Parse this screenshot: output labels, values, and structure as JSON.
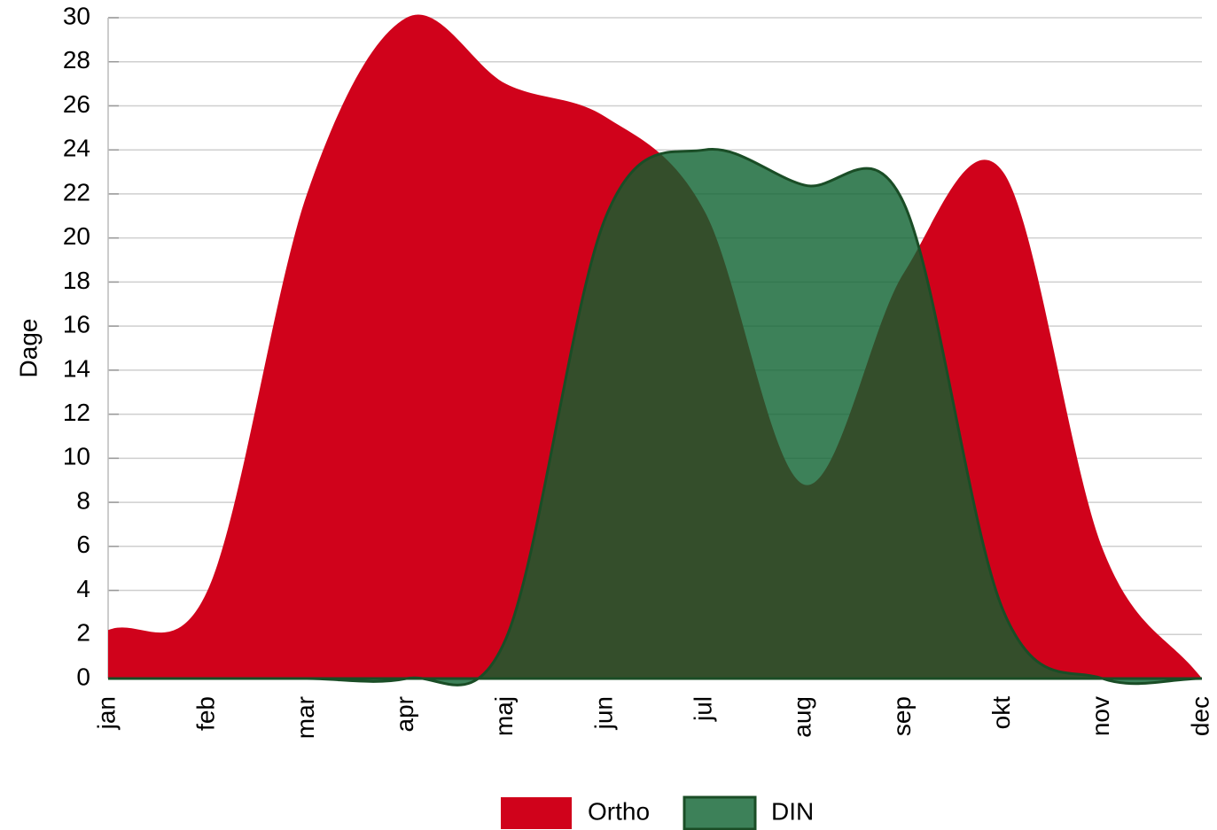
{
  "chart_data": {
    "type": "area",
    "categories": [
      "jan",
      "feb",
      "mar",
      "apr",
      "maj",
      "jun",
      "jul",
      "aug",
      "sep",
      "okt",
      "nov",
      "dec"
    ],
    "y_label": "Dage",
    "series": [
      {
        "name": "Ortho",
        "color": "#d0021b",
        "values": [
          2.2,
          4,
          22,
          30,
          27,
          25.5,
          21.2,
          8.8,
          18.4,
          23,
          5.9,
          0
        ]
      },
      {
        "name": "DIN",
        "color": "#0d612f",
        "values": [
          0,
          0,
          0,
          0,
          1.8,
          20.9,
          24,
          22.4,
          21.6,
          3.1,
          0,
          0
        ]
      }
    ],
    "ylim": [
      0,
      30
    ],
    "yticks": [
      0,
      2,
      4,
      6,
      8,
      10,
      12,
      14,
      16,
      18,
      20,
      22,
      24,
      26,
      28,
      30
    ],
    "grid": true,
    "legend": "bottom"
  }
}
